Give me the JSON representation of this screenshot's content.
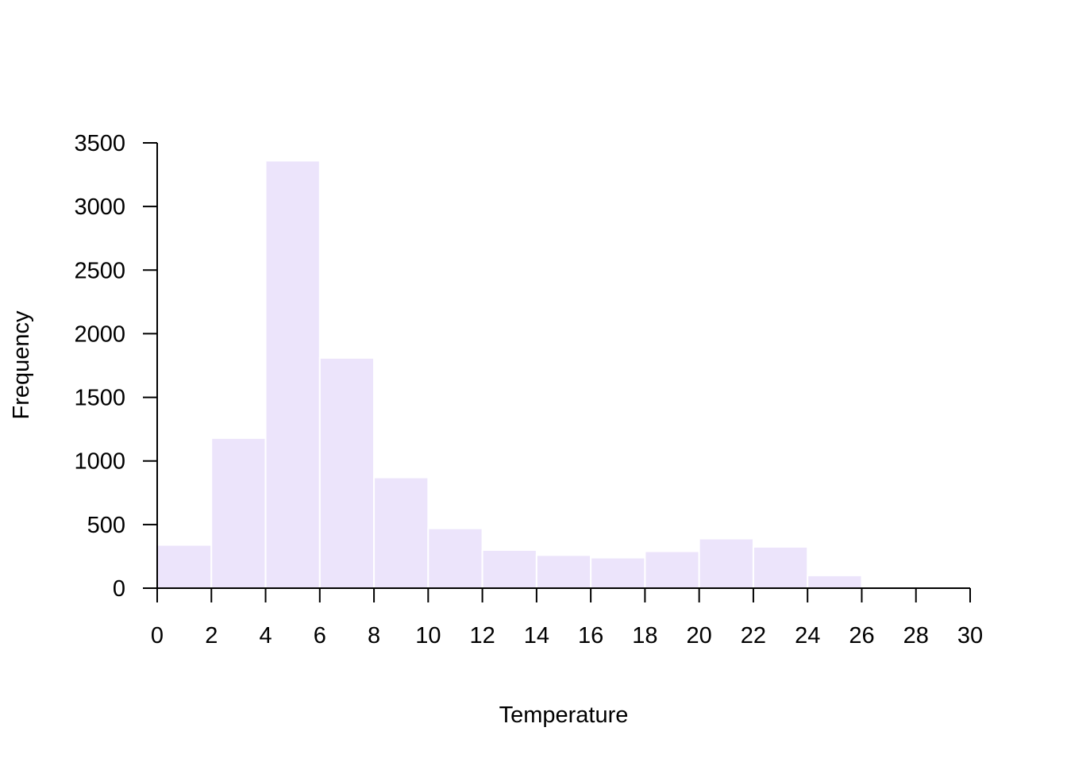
{
  "chart_data": {
    "type": "bar",
    "title": "",
    "xlabel": "Temperature",
    "ylabel": "Frequency",
    "bins": [
      {
        "from": 0,
        "to": 2,
        "value": 340
      },
      {
        "from": 2,
        "to": 4,
        "value": 1180
      },
      {
        "from": 4,
        "to": 6,
        "value": 3360
      },
      {
        "from": 6,
        "to": 8,
        "value": 1810
      },
      {
        "from": 8,
        "to": 10,
        "value": 870
      },
      {
        "from": 10,
        "to": 12,
        "value": 470
      },
      {
        "from": 12,
        "to": 14,
        "value": 300
      },
      {
        "from": 14,
        "to": 16,
        "value": 260
      },
      {
        "from": 16,
        "to": 18,
        "value": 240
      },
      {
        "from": 18,
        "to": 20,
        "value": 290
      },
      {
        "from": 20,
        "to": 22,
        "value": 390
      },
      {
        "from": 22,
        "to": 24,
        "value": 325
      },
      {
        "from": 24,
        "to": 26,
        "value": 100
      }
    ],
    "xlim": [
      0,
      30
    ],
    "ylim": [
      0,
      3500
    ],
    "x_ticks": [
      "0",
      "2",
      "4",
      "6",
      "8",
      "10",
      "12",
      "14",
      "16",
      "18",
      "20",
      "22",
      "24",
      "26",
      "28",
      "30"
    ],
    "y_ticks": [
      "0",
      "500",
      "1000",
      "1500",
      "2000",
      "2500",
      "3000",
      "3500"
    ],
    "grid": false,
    "legend": "none",
    "colors": {
      "bar_fill": "#ECE4FB",
      "bar_edge": "#FFFFFF",
      "axis": "#000000"
    }
  }
}
